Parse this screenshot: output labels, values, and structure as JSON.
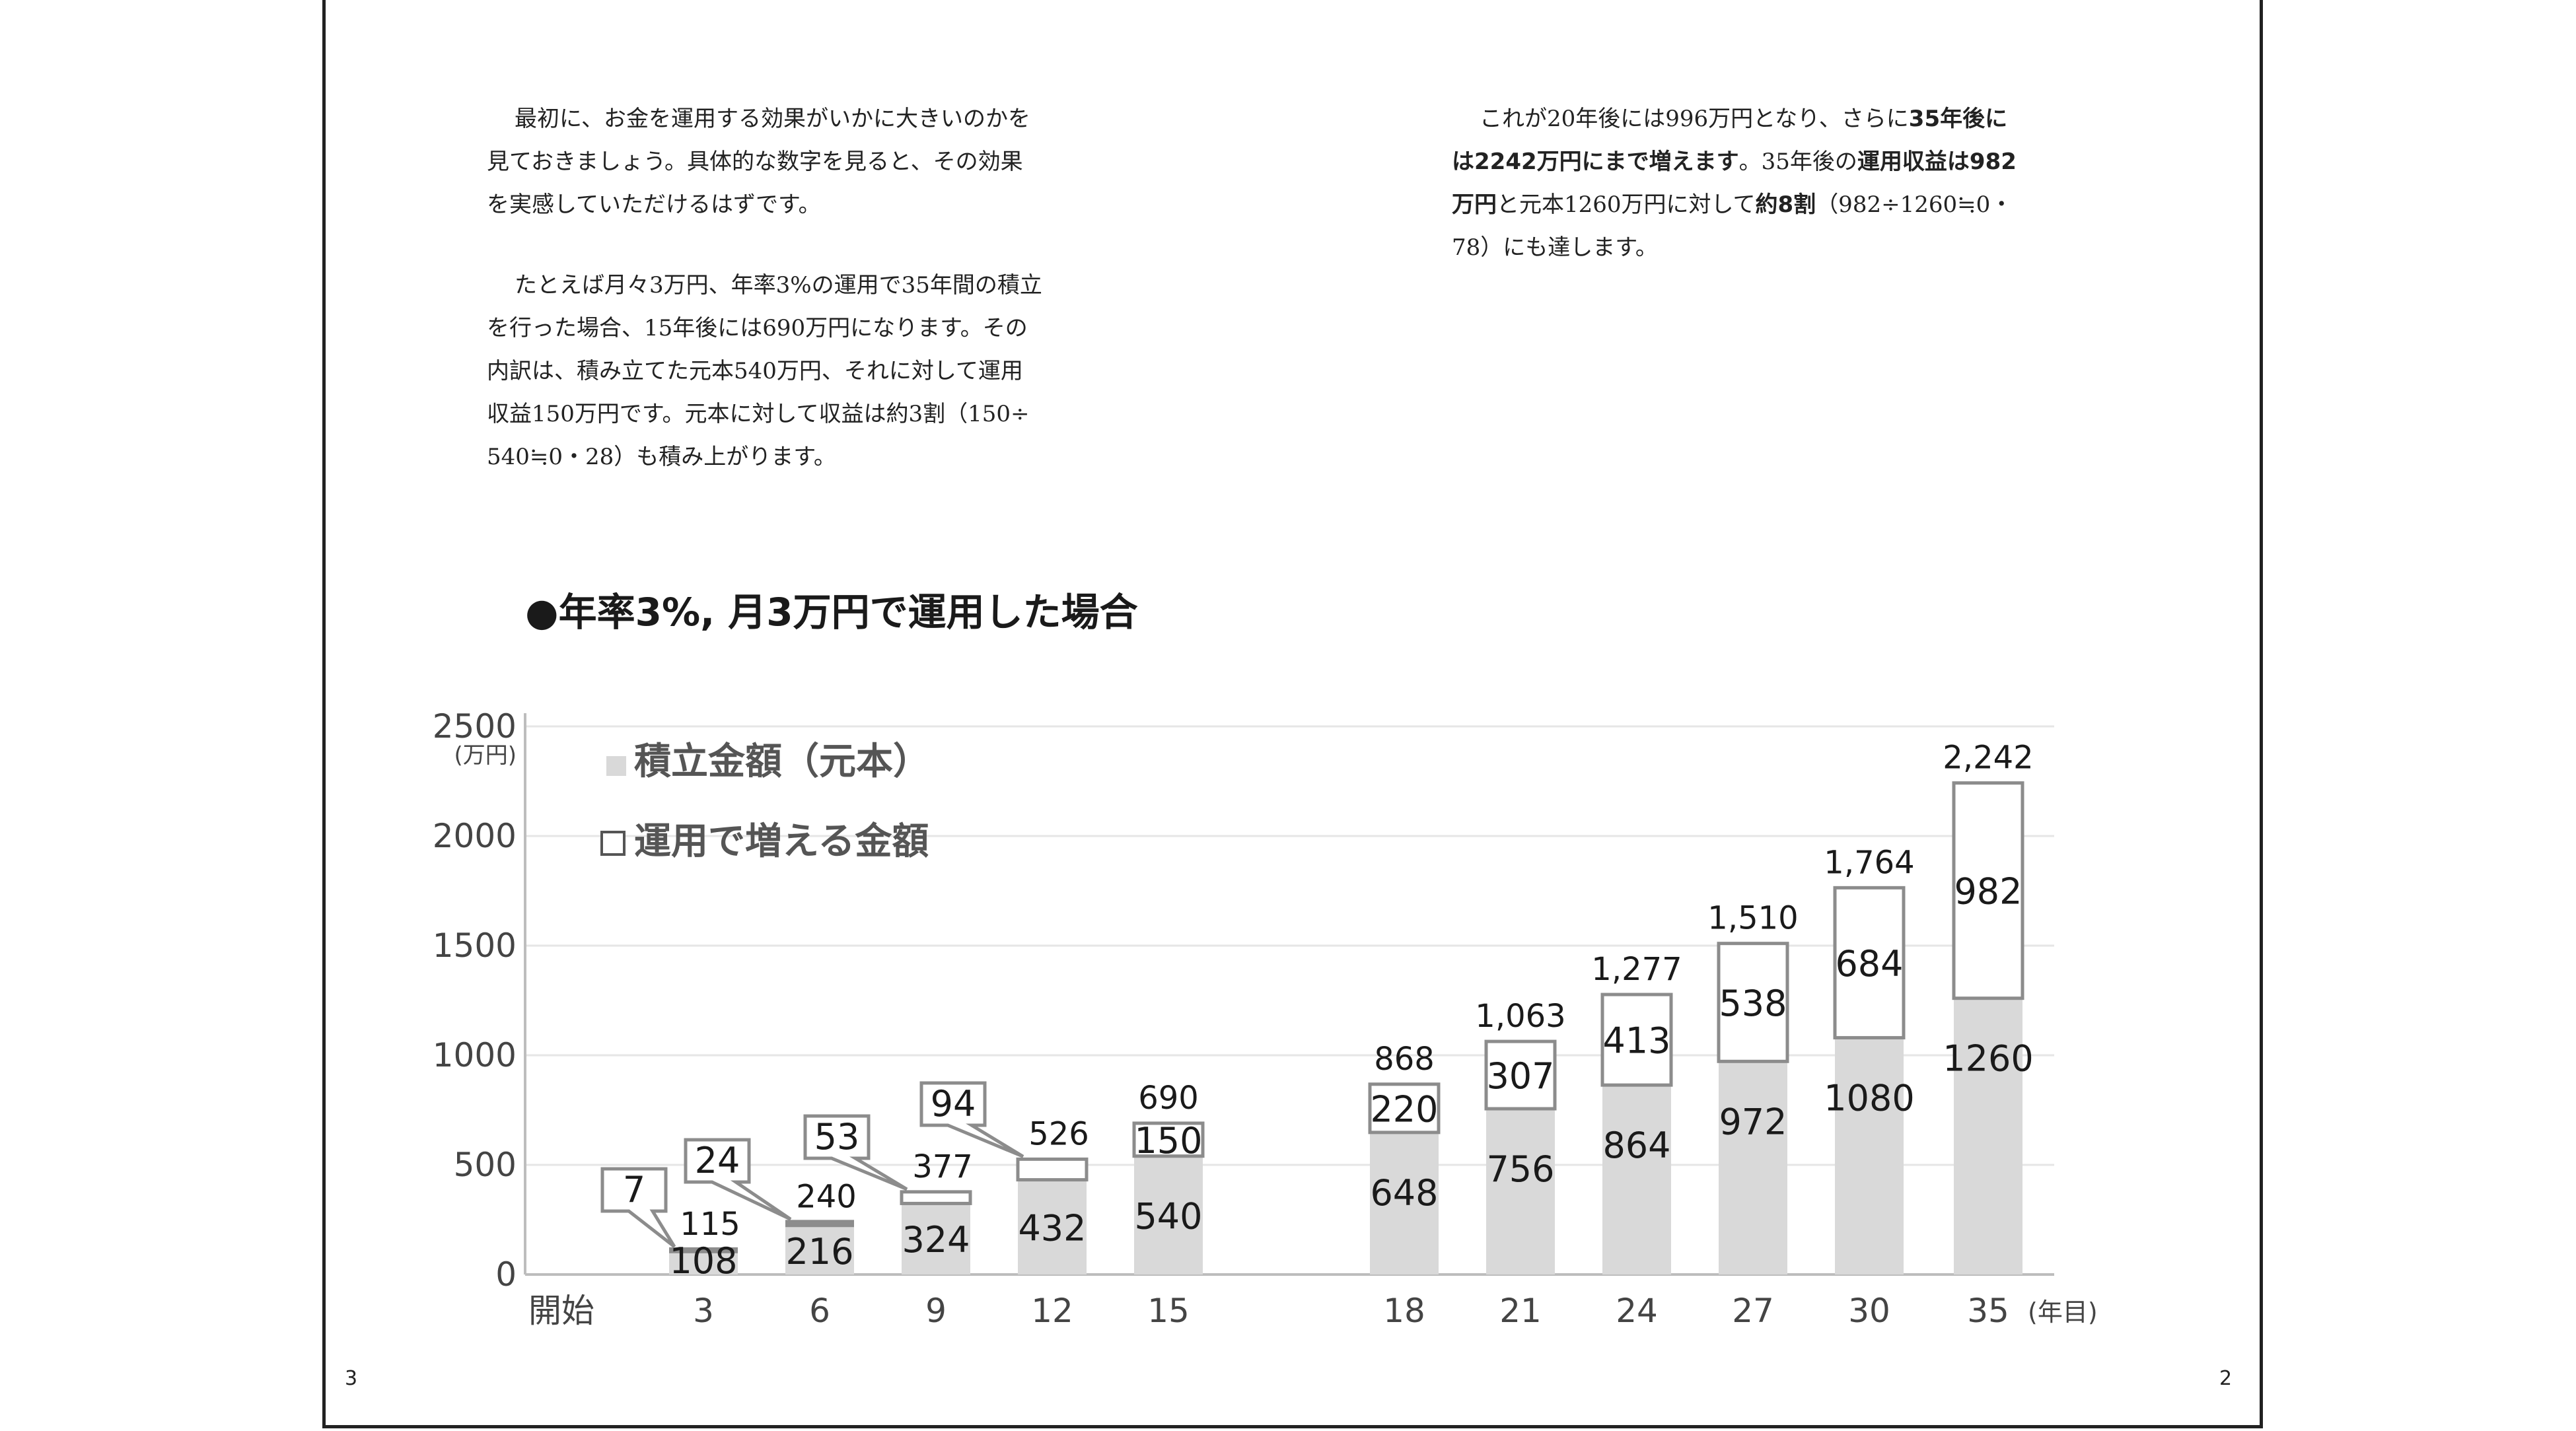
{
  "text": {
    "left": {
      "p1": [
        "最初に、お金を運用する効果がいかに大きいのかを",
        "見ておきましょう。具体的な数字を見ると、その効果",
        "を実感していただけるはずです。"
      ],
      "p2": [
        "たとえば月々3万円、年率3%の運用で35年間の積立",
        "を行った場合、15年後には690万円になります。その",
        "内訳は、積み立てた元本540万円、それに対して運用",
        "収益150万円です。元本に対して収益は約3割（150÷",
        "540≒0・28）も積み上がります。"
      ]
    },
    "right": {
      "l1a": "これが20年後には996万円となり、さらに",
      "l1b": "35年後に",
      "l2a": "は2242万円にまで増えます",
      "l2b": "。35年後の",
      "l2c": "運用収益は982",
      "l3a": "万円",
      "l3b": "と元本1260万円に対して",
      "l3c": "約8割",
      "l3d": "（982÷1260≒0・",
      "l4": "78）にも達します。"
    }
  },
  "page_numbers": {
    "left": "3",
    "right": "2"
  },
  "chart_data": {
    "type": "bar",
    "stacked": true,
    "title": "●年率3%, 月3万円で運用した場合",
    "y_unit": "(万円)",
    "x_unit": "(年目)",
    "ylim": [
      0,
      2500
    ],
    "yticks": [
      "0",
      "500",
      "1000",
      "1500",
      "2000",
      "2500"
    ],
    "grid": true,
    "legend_position": "top-left",
    "categories": [
      "開始",
      "3",
      "6",
      "9",
      "12",
      "15",
      "18",
      "21",
      "24",
      "27",
      "30",
      "35"
    ],
    "series": [
      {
        "name": "積立金額（元本）",
        "color": "#d9d9d9",
        "values": [
          0,
          108,
          216,
          324,
          432,
          540,
          648,
          756,
          864,
          972,
          1080,
          1260
        ]
      },
      {
        "name": "運用で増える金額",
        "color": "#ffffff",
        "values": [
          0,
          7,
          24,
          53,
          94,
          150,
          220,
          307,
          413,
          538,
          684,
          982
        ]
      }
    ],
    "totals": [
      "",
      "115",
      "240",
      "377",
      "526",
      "690",
      "868",
      "1,063",
      "1,277",
      "1,510",
      "1,764",
      "2,242"
    ],
    "callout_categories": [
      "3",
      "6",
      "9",
      "12"
    ],
    "colors": {
      "outline": "#8c8c8c",
      "grid": "#e6e6e6",
      "axis": "#bdbdbd",
      "text": "#1a1a1a",
      "tick": "#444444"
    }
  }
}
